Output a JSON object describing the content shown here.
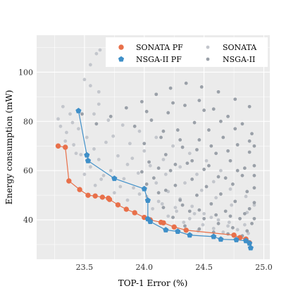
{
  "chart_data": {
    "type": "scatter",
    "xlabel": "TOP-1 Error (%)",
    "ylabel": "Energy consumption (mW)",
    "xlim": [
      23.1,
      25.05
    ],
    "ylim": [
      24,
      115
    ],
    "x_ticks": [
      23.5,
      24.0,
      24.5,
      25.0
    ],
    "x_tick_labels": [
      "23.5",
      "24.0",
      "24.5",
      "25.0"
    ],
    "y_ticks": [
      40,
      60,
      80,
      100
    ],
    "y_tick_labels": [
      "40",
      "60",
      "80",
      "100"
    ],
    "grid": true,
    "legend": {
      "position": "top-right",
      "entries": [
        "SONATA PF",
        "NSGA-II PF",
        "SONATA",
        "NSGA-II"
      ]
    },
    "colors": {
      "panel": "#ebebeb",
      "grid": "#ffffff",
      "sonata_pf": "#e8704a",
      "nsga_pf": "#3f8fc8",
      "sonata": "#c3c6cc",
      "nsga": "#9aa0a8"
    },
    "series": [
      {
        "name": "SONATA PF",
        "marker": "circle",
        "line": true,
        "points": [
          [
            23.28,
            70.0
          ],
          [
            23.34,
            69.5
          ],
          [
            23.37,
            55.8
          ],
          [
            23.46,
            52.3
          ],
          [
            23.53,
            50.0
          ],
          [
            23.59,
            49.7
          ],
          [
            23.65,
            49.2
          ],
          [
            23.7,
            48.8
          ],
          [
            23.71,
            48.3
          ],
          [
            23.78,
            46.1
          ],
          [
            23.85,
            44.3
          ],
          [
            23.92,
            42.9
          ],
          [
            24.0,
            41.0
          ],
          [
            24.05,
            40.0
          ],
          [
            24.14,
            39.0
          ],
          [
            24.16,
            38.8
          ],
          [
            24.25,
            37.1
          ],
          [
            24.35,
            35.8
          ],
          [
            24.75,
            33.8
          ],
          [
            24.8,
            32.8
          ],
          [
            24.85,
            32.2
          ],
          [
            24.88,
            30.7
          ]
        ]
      },
      {
        "name": "NSGA-II PF",
        "marker": "pentagon",
        "line": true,
        "points": [
          [
            23.45,
            84.3
          ],
          [
            23.52,
            66.3
          ],
          [
            23.53,
            64.0
          ],
          [
            23.75,
            56.8
          ],
          [
            24.0,
            52.6
          ],
          [
            24.03,
            47.9
          ],
          [
            24.03,
            40.4
          ],
          [
            24.05,
            39.3
          ],
          [
            24.18,
            35.9
          ],
          [
            24.28,
            35.3
          ],
          [
            24.38,
            33.8
          ],
          [
            24.58,
            33.2
          ],
          [
            24.64,
            32.1
          ],
          [
            24.77,
            31.9
          ],
          [
            24.85,
            31.5
          ],
          [
            24.88,
            30.5
          ],
          [
            24.89,
            28.6
          ]
        ]
      },
      {
        "name": "SONATA",
        "marker": "dot",
        "line": false,
        "points": [
          [
            23.55,
            103.0
          ],
          [
            23.6,
            107.5
          ],
          [
            23.63,
            109.0
          ],
          [
            23.5,
            97.0
          ],
          [
            23.55,
            94.5
          ],
          [
            23.62,
            92.0
          ],
          [
            23.62,
            87.0
          ],
          [
            23.58,
            83.0
          ],
          [
            23.7,
            80.5
          ],
          [
            23.4,
            79.5
          ],
          [
            23.3,
            78.0
          ],
          [
            23.45,
            77.0
          ],
          [
            23.35,
            75.5
          ],
          [
            23.52,
            73.5
          ],
          [
            23.68,
            71.5
          ],
          [
            23.41,
            70.5
          ],
          [
            23.58,
            68.8
          ],
          [
            23.47,
            66.5
          ],
          [
            23.78,
            66.0
          ],
          [
            23.62,
            64.5
          ],
          [
            23.86,
            62.5
          ],
          [
            23.55,
            61.5
          ],
          [
            23.72,
            60.0
          ],
          [
            23.95,
            59.0
          ],
          [
            23.66,
            58.0
          ],
          [
            23.83,
            56.7
          ],
          [
            24.1,
            55.0
          ],
          [
            23.59,
            54.0
          ],
          [
            23.91,
            53.0
          ],
          [
            24.2,
            51.5
          ],
          [
            23.75,
            51.0
          ],
          [
            24.02,
            49.5
          ],
          [
            24.3,
            48.5
          ],
          [
            23.86,
            48.0
          ],
          [
            24.15,
            46.5
          ],
          [
            24.4,
            45.5
          ],
          [
            24.07,
            44.5
          ],
          [
            24.27,
            43.5
          ],
          [
            24.5,
            42.5
          ],
          [
            24.2,
            41.5
          ],
          [
            24.38,
            40.5
          ],
          [
            24.62,
            40.0
          ],
          [
            24.33,
            39.0
          ],
          [
            24.49,
            38.0
          ],
          [
            24.7,
            37.5
          ],
          [
            24.58,
            36.5
          ],
          [
            24.78,
            36.0
          ],
          [
            24.45,
            35.5
          ],
          [
            24.66,
            35.0
          ],
          [
            24.87,
            34.5
          ],
          [
            23.32,
            86.0
          ],
          [
            23.38,
            83.0
          ],
          [
            23.28,
            81.0
          ],
          [
            23.34,
            72.0
          ],
          [
            23.43,
            67.0
          ],
          [
            23.5,
            58.5
          ],
          [
            23.64,
            56.5
          ],
          [
            23.8,
            53.5
          ],
          [
            23.96,
            50.5
          ],
          [
            24.12,
            47.5
          ],
          [
            24.26,
            45.0
          ],
          [
            24.42,
            42.5
          ],
          [
            24.56,
            41.0
          ],
          [
            24.71,
            39.0
          ],
          [
            24.84,
            38.0
          ],
          [
            23.9,
            65.0
          ],
          [
            24.05,
            62.0
          ],
          [
            24.18,
            58.5
          ],
          [
            24.34,
            55.0
          ],
          [
            24.48,
            52.0
          ],
          [
            24.6,
            49.0
          ],
          [
            24.73,
            46.0
          ],
          [
            24.86,
            43.0
          ],
          [
            23.74,
            74.0
          ],
          [
            23.88,
            71.0
          ],
          [
            24.0,
            68.0
          ],
          [
            24.16,
            64.5
          ],
          [
            24.3,
            61.5
          ],
          [
            24.44,
            58.5
          ],
          [
            24.58,
            55.5
          ],
          [
            24.72,
            52.5
          ],
          [
            24.85,
            49.5
          ],
          [
            24.92,
            46.0
          ],
          [
            24.64,
            60.0
          ],
          [
            24.52,
            64.0
          ],
          [
            24.38,
            67.0
          ],
          [
            24.24,
            70.0
          ],
          [
            24.1,
            73.5
          ],
          [
            23.96,
            76.0
          ],
          [
            23.82,
            78.5
          ]
        ]
      },
      {
        "name": "NSGA-II",
        "marker": "dot",
        "line": false,
        "points": [
          [
            23.48,
            83.0
          ],
          [
            23.6,
            79.0
          ],
          [
            23.72,
            82.0
          ],
          [
            23.85,
            85.5
          ],
          [
            23.98,
            88.0
          ],
          [
            24.1,
            91.0
          ],
          [
            24.22,
            93.5
          ],
          [
            24.35,
            95.5
          ],
          [
            24.48,
            94.0
          ],
          [
            24.62,
            92.0
          ],
          [
            24.76,
            89.0
          ],
          [
            24.88,
            86.0
          ],
          [
            23.92,
            78.0
          ],
          [
            24.06,
            80.5
          ],
          [
            24.2,
            83.5
          ],
          [
            24.34,
            86.5
          ],
          [
            24.46,
            88.5
          ],
          [
            24.58,
            85.0
          ],
          [
            24.7,
            82.0
          ],
          [
            24.82,
            79.0
          ],
          [
            24.9,
            75.0
          ],
          [
            24.0,
            71.0
          ],
          [
            24.14,
            73.5
          ],
          [
            24.28,
            76.5
          ],
          [
            24.42,
            79.5
          ],
          [
            24.54,
            76.5
          ],
          [
            24.66,
            73.5
          ],
          [
            24.78,
            70.5
          ],
          [
            24.88,
            67.5
          ],
          [
            24.04,
            63.5
          ],
          [
            24.18,
            66.5
          ],
          [
            24.32,
            69.5
          ],
          [
            24.46,
            72.5
          ],
          [
            24.6,
            67.0
          ],
          [
            24.72,
            64.0
          ],
          [
            24.84,
            61.0
          ],
          [
            24.92,
            58.0
          ],
          [
            24.08,
            57.0
          ],
          [
            24.22,
            60.0
          ],
          [
            24.36,
            63.0
          ],
          [
            24.5,
            60.5
          ],
          [
            24.62,
            57.5
          ],
          [
            24.74,
            54.5
          ],
          [
            24.86,
            51.5
          ],
          [
            24.12,
            51.0
          ],
          [
            24.26,
            54.0
          ],
          [
            24.4,
            56.5
          ],
          [
            24.52,
            53.5
          ],
          [
            24.64,
            50.5
          ],
          [
            24.76,
            47.5
          ],
          [
            24.88,
            44.5
          ],
          [
            24.16,
            45.0
          ],
          [
            24.3,
            48.0
          ],
          [
            24.44,
            50.0
          ],
          [
            24.56,
            46.5
          ],
          [
            24.68,
            43.5
          ],
          [
            24.8,
            40.5
          ],
          [
            24.9,
            38.5
          ],
          [
            24.24,
            41.0
          ],
          [
            24.38,
            43.5
          ],
          [
            24.5,
            40.5
          ],
          [
            24.62,
            38.5
          ],
          [
            24.74,
            36.8
          ],
          [
            24.86,
            35.5
          ],
          [
            24.34,
            37.5
          ],
          [
            24.46,
            36.3
          ],
          [
            24.58,
            35.0
          ],
          [
            24.7,
            34.3
          ],
          [
            24.82,
            33.5
          ],
          [
            24.92,
            40.5
          ],
          [
            24.92,
            47.0
          ],
          [
            24.92,
            53.0
          ],
          [
            24.92,
            62.0
          ],
          [
            24.92,
            70.0
          ],
          [
            24.78,
            60.0
          ],
          [
            24.68,
            57.0
          ],
          [
            24.54,
            62.0
          ],
          [
            24.4,
            64.0
          ],
          [
            24.26,
            62.5
          ],
          [
            24.12,
            61.0
          ],
          [
            23.98,
            59.5
          ],
          [
            24.02,
            54.5
          ],
          [
            24.18,
            52.0
          ],
          [
            24.32,
            46.0
          ],
          [
            24.46,
            44.0
          ],
          [
            24.6,
            42.0
          ],
          [
            24.72,
            41.5
          ],
          [
            24.84,
            42.5
          ],
          [
            24.82,
            58.0
          ],
          [
            24.7,
            68.0
          ],
          [
            24.56,
            70.0
          ],
          [
            24.44,
            68.5
          ],
          [
            24.3,
            72.5
          ],
          [
            24.16,
            76.0
          ],
          [
            24.02,
            84.0
          ],
          [
            24.24,
            87.5
          ],
          [
            24.5,
            84.5
          ],
          [
            24.64,
            80.0
          ],
          [
            24.76,
            77.0
          ],
          [
            24.88,
            72.0
          ]
        ]
      }
    ]
  }
}
